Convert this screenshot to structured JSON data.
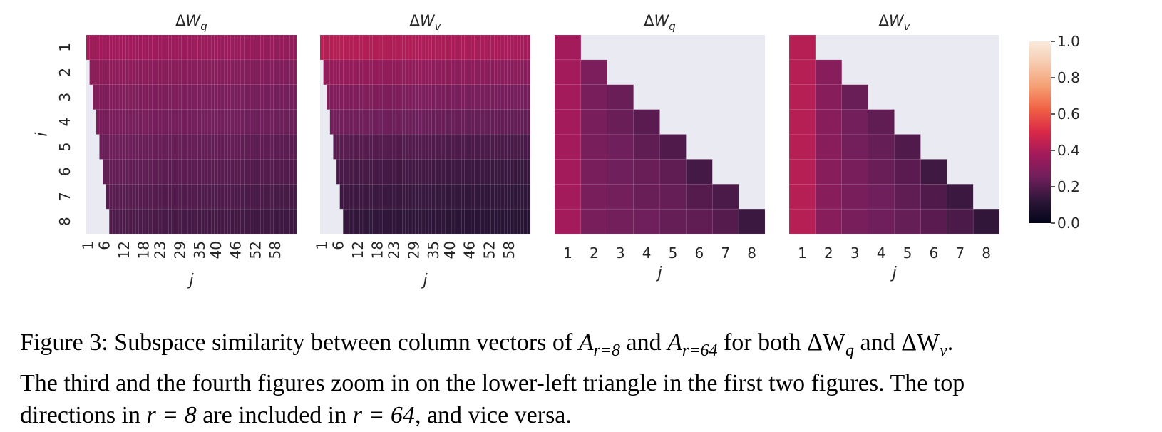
{
  "colors": {
    "background_masked": "#eaeaf2",
    "text": "#262626",
    "colormap": [
      "#03051a",
      "#2e1639",
      "#6f1f5b",
      "#a11a5b",
      "#d92847",
      "#f06043",
      "#f59e72",
      "#f6c9ac",
      "#faebdd"
    ]
  },
  "chart_data": [
    {
      "type": "heatmap",
      "title": "ΔWq",
      "title_main": "ΔW",
      "title_sub": "q",
      "ylabel": "i",
      "xlabel": "j",
      "rows": [
        1,
        2,
        3,
        4,
        5,
        6,
        7,
        8
      ],
      "n_cols": 64,
      "xtick_labels": [
        "1",
        "6",
        "12",
        "18",
        "23",
        "29",
        "35",
        "40",
        "46",
        "52",
        "58"
      ],
      "ytick_labels": [
        "1",
        "2",
        "3",
        "4",
        "5",
        "6",
        "7",
        "8"
      ],
      "row_values": [
        0.38,
        0.33,
        0.3,
        0.28,
        0.25,
        0.23,
        0.21,
        0.19
      ],
      "mask": "cells with j < i are empty",
      "vmin": 0.0,
      "vmax": 1.0
    },
    {
      "type": "heatmap",
      "title": "ΔWv",
      "title_main": "ΔW",
      "title_sub": "v",
      "ylabel": "",
      "xlabel": "j",
      "rows": [
        1,
        2,
        3,
        4,
        5,
        6,
        7,
        8
      ],
      "n_cols": 64,
      "xtick_labels": [
        "1",
        "6",
        "12",
        "18",
        "23",
        "29",
        "35",
        "40",
        "46",
        "52",
        "58"
      ],
      "ytick_labels": [],
      "row_values": [
        0.42,
        0.35,
        0.3,
        0.26,
        0.21,
        0.18,
        0.16,
        0.14
      ],
      "mask": "cells with j < i are empty",
      "vmin": 0.0,
      "vmax": 1.0
    },
    {
      "type": "heatmap",
      "title": "ΔWq",
      "title_main": "ΔW",
      "title_sub": "q",
      "ylabel": "",
      "xlabel": "j",
      "rows": [
        1,
        2,
        3,
        4,
        5,
        6,
        7,
        8
      ],
      "columns": [
        "1",
        "2",
        "3",
        "4",
        "5",
        "6",
        "7",
        "8"
      ],
      "values": [
        [
          0.38,
          null,
          null,
          null,
          null,
          null,
          null,
          null
        ],
        [
          0.38,
          0.28,
          null,
          null,
          null,
          null,
          null,
          null
        ],
        [
          0.38,
          0.27,
          0.24,
          null,
          null,
          null,
          null,
          null
        ],
        [
          0.38,
          0.27,
          0.24,
          0.21,
          null,
          null,
          null,
          null
        ],
        [
          0.38,
          0.27,
          0.25,
          0.22,
          0.19,
          null,
          null,
          null
        ],
        [
          0.38,
          0.27,
          0.25,
          0.24,
          0.22,
          0.17,
          null,
          null
        ],
        [
          0.38,
          0.27,
          0.26,
          0.24,
          0.23,
          0.2,
          0.18,
          null
        ],
        [
          0.38,
          0.27,
          0.26,
          0.25,
          0.23,
          0.22,
          0.2,
          0.15
        ]
      ],
      "vmin": 0.0,
      "vmax": 1.0
    },
    {
      "type": "heatmap",
      "title": "ΔWv",
      "title_main": "ΔW",
      "title_sub": "v",
      "ylabel": "",
      "xlabel": "j",
      "rows": [
        1,
        2,
        3,
        4,
        5,
        6,
        7,
        8
      ],
      "columns": [
        "1",
        "2",
        "3",
        "4",
        "5",
        "6",
        "7",
        "8"
      ],
      "values": [
        [
          0.42,
          null,
          null,
          null,
          null,
          null,
          null,
          null
        ],
        [
          0.42,
          0.31,
          null,
          null,
          null,
          null,
          null,
          null
        ],
        [
          0.42,
          0.31,
          0.24,
          null,
          null,
          null,
          null,
          null
        ],
        [
          0.42,
          0.31,
          0.26,
          0.22,
          null,
          null,
          null,
          null
        ],
        [
          0.42,
          0.31,
          0.26,
          0.23,
          0.19,
          null,
          null,
          null
        ],
        [
          0.42,
          0.31,
          0.27,
          0.24,
          0.21,
          0.16,
          null,
          null
        ],
        [
          0.42,
          0.31,
          0.27,
          0.25,
          0.22,
          0.19,
          0.15,
          null
        ],
        [
          0.42,
          0.31,
          0.27,
          0.25,
          0.23,
          0.21,
          0.18,
          0.13
        ]
      ],
      "vmin": 0.0,
      "vmax": 1.0
    },
    {
      "type": "colorbar",
      "ticks": [
        "0.0",
        "0.2",
        "0.4",
        "0.6",
        "0.8",
        "1.0"
      ],
      "tick_values": [
        0.0,
        0.2,
        0.4,
        0.6,
        0.8,
        1.0
      ]
    }
  ],
  "caption": {
    "line1": "Figure 3: Subspace similarity between column vectors of A_{r=8} and A_{r=64} for both ΔW_q and ΔW_v.",
    "seg_prefix": "Figure 3: Subspace similarity between column vectors of ",
    "A": "A",
    "sub_r8": "r=8",
    "and": " and ",
    "sub_r64": "r=64",
    "for_both": " for both ",
    "dW": "ΔW",
    "sub_q": "q",
    "sub_v": "v",
    "end1": ".",
    "line2": "The third and the fourth figures zoom in on the lower-left triangle in the first two figures. The top",
    "line3_a": "directions in ",
    "r_eq_8": "r = 8",
    "line3_b": " are included in ",
    "r_eq_64": "r = 64",
    "line3_c": ", and vice versa."
  }
}
